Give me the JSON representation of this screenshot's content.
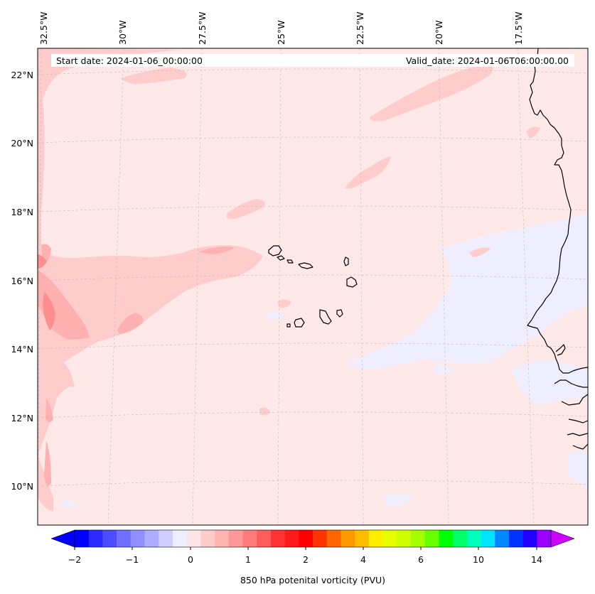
{
  "header": {
    "start_date": "Start date: 2024-01-06_00:00:00",
    "valid_date": "Valid_date: 2024-01-06T06:00:00.00"
  },
  "axes": {
    "lon_labels": [
      "32.5°W",
      "30°W",
      "27.5°W",
      "25°W",
      "22.5°W",
      "20°W",
      "17.5°W"
    ],
    "lat_labels": [
      "22°N",
      "20°N",
      "18°N",
      "16°N",
      "14°N",
      "12°N",
      "10°N"
    ]
  },
  "colorbar": {
    "label": "850 hPa potenital vorticity (PVU)",
    "tick_labels": [
      "−2",
      "−1",
      "0",
      "1",
      "2",
      "4",
      "6",
      "10",
      "14"
    ],
    "colors": [
      "#0000ff",
      "#2a2aff",
      "#4d4dff",
      "#7070ff",
      "#8f8fff",
      "#adadff",
      "#cfcfff",
      "#eeeeff",
      "#ffe6e6",
      "#ffcccc",
      "#ffb3b3",
      "#ff9999",
      "#ff7a7a",
      "#ff5c5c",
      "#ff3333",
      "#ff1a1a",
      "#ff0000",
      "#ff3300",
      "#ff6600",
      "#ff9900",
      "#ffbb00",
      "#ffee00",
      "#e5ff00",
      "#ccff00",
      "#a6ff00",
      "#66ff00",
      "#00ff00",
      "#00ff66",
      "#00ffbb",
      "#00e5ff",
      "#0088ff",
      "#0033ff",
      "#2200ff",
      "#9900ff"
    ],
    "min_color": "#0000ff",
    "max_color": "#cc00ff"
  },
  "map": {
    "background": "#ffe8e8",
    "gridline_color": "#bbbbbb",
    "coast_color": "#000000"
  }
}
